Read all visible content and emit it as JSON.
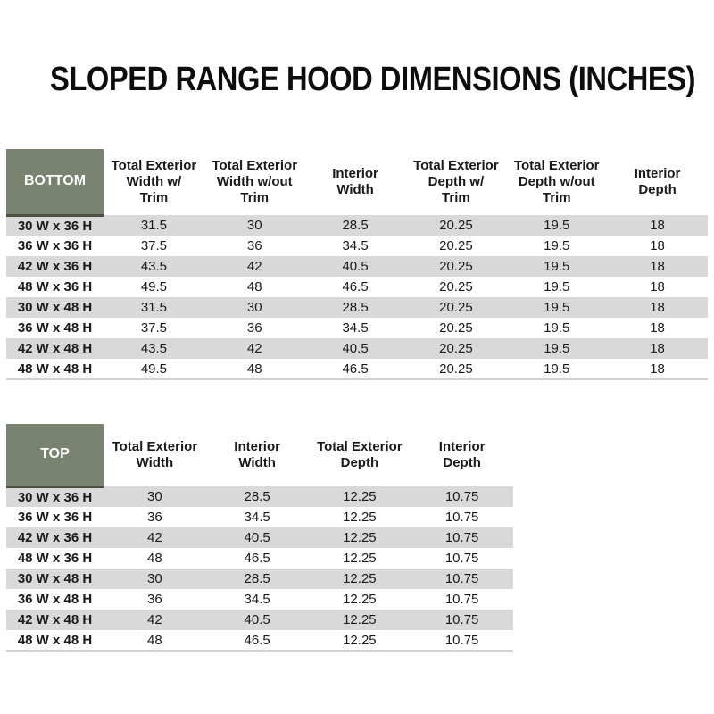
{
  "title": "SLOPED RANGE HOOD DIMENSIONS (INCHES)",
  "colors": {
    "header_cell_green": "#7a8270",
    "header_cell_edge": "#4a5140",
    "row_stripe_gray": "#d9d9d9",
    "text": "#1a1a1a"
  },
  "tables": [
    {
      "name": "BOTTOM",
      "columns": [
        "Total Exterior\nWidth w/\nTrim",
        "Total Exterior\nWidth w/out\nTrim",
        "Interior\nWidth",
        "Total Exterior\nDepth w/\nTrim",
        "Total Exterior\nDepth w/out\nTrim",
        "Interior\nDepth"
      ],
      "rows": [
        {
          "label": "30 W x 36 H",
          "values": [
            "31.5",
            "30",
            "28.5",
            "20.25",
            "19.5",
            "18"
          ]
        },
        {
          "label": "36 W x 36 H",
          "values": [
            "37.5",
            "36",
            "34.5",
            "20.25",
            "19.5",
            "18"
          ]
        },
        {
          "label": "42 W x 36 H",
          "values": [
            "43.5",
            "42",
            "40.5",
            "20.25",
            "19.5",
            "18"
          ]
        },
        {
          "label": "48 W x 36 H",
          "values": [
            "49.5",
            "48",
            "46.5",
            "20.25",
            "19.5",
            "18"
          ]
        },
        {
          "label": "30 W x 48 H",
          "values": [
            "31.5",
            "30",
            "28.5",
            "20.25",
            "19.5",
            "18"
          ]
        },
        {
          "label": "36 W x 48 H",
          "values": [
            "37.5",
            "36",
            "34.5",
            "20.25",
            "19.5",
            "18"
          ]
        },
        {
          "label": "42 W x 48 H",
          "values": [
            "43.5",
            "42",
            "40.5",
            "20.25",
            "19.5",
            "18"
          ]
        },
        {
          "label": "48 W x 48 H",
          "values": [
            "49.5",
            "48",
            "46.5",
            "20.25",
            "19.5",
            "18"
          ]
        }
      ]
    },
    {
      "name": "TOP",
      "columns": [
        "Total Exterior\nWidth",
        "Interior\nWidth",
        "Total Exterior\nDepth",
        "Interior\nDepth"
      ],
      "rows": [
        {
          "label": "30 W x 36 H",
          "values": [
            "30",
            "28.5",
            "12.25",
            "10.75"
          ]
        },
        {
          "label": "36 W x 36 H",
          "values": [
            "36",
            "34.5",
            "12.25",
            "10.75"
          ]
        },
        {
          "label": "42 W x 36 H",
          "values": [
            "42",
            "40.5",
            "12.25",
            "10.75"
          ]
        },
        {
          "label": "48 W x 36 H",
          "values": [
            "48",
            "46.5",
            "12.25",
            "10.75"
          ]
        },
        {
          "label": "30 W x 48 H",
          "values": [
            "30",
            "28.5",
            "12.25",
            "10.75"
          ]
        },
        {
          "label": "36 W x 48 H",
          "values": [
            "36",
            "34.5",
            "12.25",
            "10.75"
          ]
        },
        {
          "label": "42 W x 48 H",
          "values": [
            "42",
            "40.5",
            "12.25",
            "10.75"
          ]
        },
        {
          "label": "48 W x 48 H",
          "values": [
            "48",
            "46.5",
            "12.25",
            "10.75"
          ]
        }
      ]
    }
  ]
}
